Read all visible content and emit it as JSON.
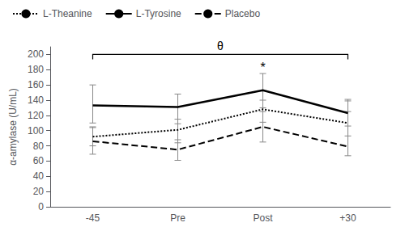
{
  "chart_data": {
    "type": "line",
    "categories": [
      "-45",
      "Pre",
      "Post",
      "+30"
    ],
    "ylabel": "α-amylase (U/mL)",
    "ylim": [
      0,
      210
    ],
    "yticks": [
      0,
      20,
      40,
      60,
      80,
      100,
      120,
      140,
      160,
      180,
      200
    ],
    "grid": false,
    "legend": "upper left",
    "series": [
      {
        "name": "L-Theanine",
        "color": "#000000",
        "line_style": "dotted",
        "values": [
          92,
          101,
          128,
          110
        ],
        "errors_lo": [
          12,
          17,
          17,
          17
        ],
        "errors_hi": [
          13,
          14,
          12,
          15
        ]
      },
      {
        "name": "L-Tyrosine",
        "color": "#000000",
        "line_style": "solid",
        "values": [
          133,
          131,
          153,
          123
        ],
        "errors_lo": [
          23,
          22,
          23,
          17
        ],
        "errors_hi": [
          27,
          17,
          22,
          18
        ]
      },
      {
        "name": "Placebo",
        "color": "#000000",
        "line_style": "dashed",
        "values": [
          86,
          75,
          105,
          79
        ],
        "errors_lo": [
          17,
          14,
          20,
          12
        ],
        "errors_hi": [
          18,
          13,
          20,
          60
        ]
      }
    ],
    "annotations": [
      {
        "text": "θ",
        "x_from": "-45",
        "x_to": "+30",
        "y": 200
      },
      {
        "text": "*",
        "x": "Post",
        "y": 175
      }
    ]
  }
}
